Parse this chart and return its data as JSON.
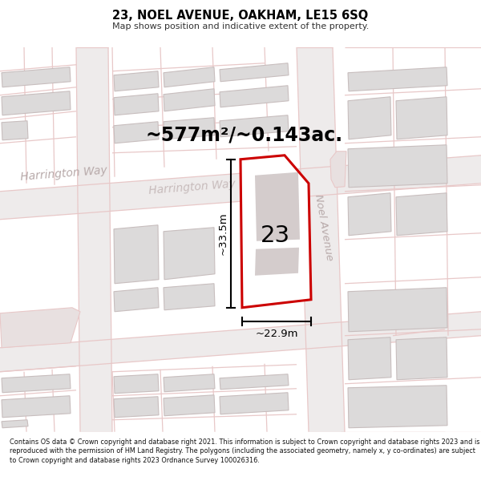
{
  "title": "23, NOEL AVENUE, OAKHAM, LE15 6SQ",
  "subtitle": "Map shows position and indicative extent of the property.",
  "area_text": "~577m²/~0.143ac.",
  "number_label": "23",
  "dim_width": "~22.9m",
  "dim_height": "~33.5m",
  "footer_text": "Contains OS data © Crown copyright and database right 2021. This information is subject to Crown copyright and database rights 2023 and is reproduced with the permission of HM Land Registry. The polygons (including the associated geometry, namely x, y co-ordinates) are subject to Crown copyright and database rights 2023 Ordnance Survey 100026316.",
  "map_bg": "#f7f4f4",
  "road_stripe_color": "#ede8e8",
  "building_fill": "#dcdada",
  "building_edge": "#c8bebe",
  "block_line_color": "#e8c8c8",
  "highlight_red": "#cc0000",
  "highlight_fill": "#f8f0f0",
  "inner_building_fill": "#d4cccc",
  "street_label_color": "#b8aaaa",
  "dim_color": "#111111"
}
